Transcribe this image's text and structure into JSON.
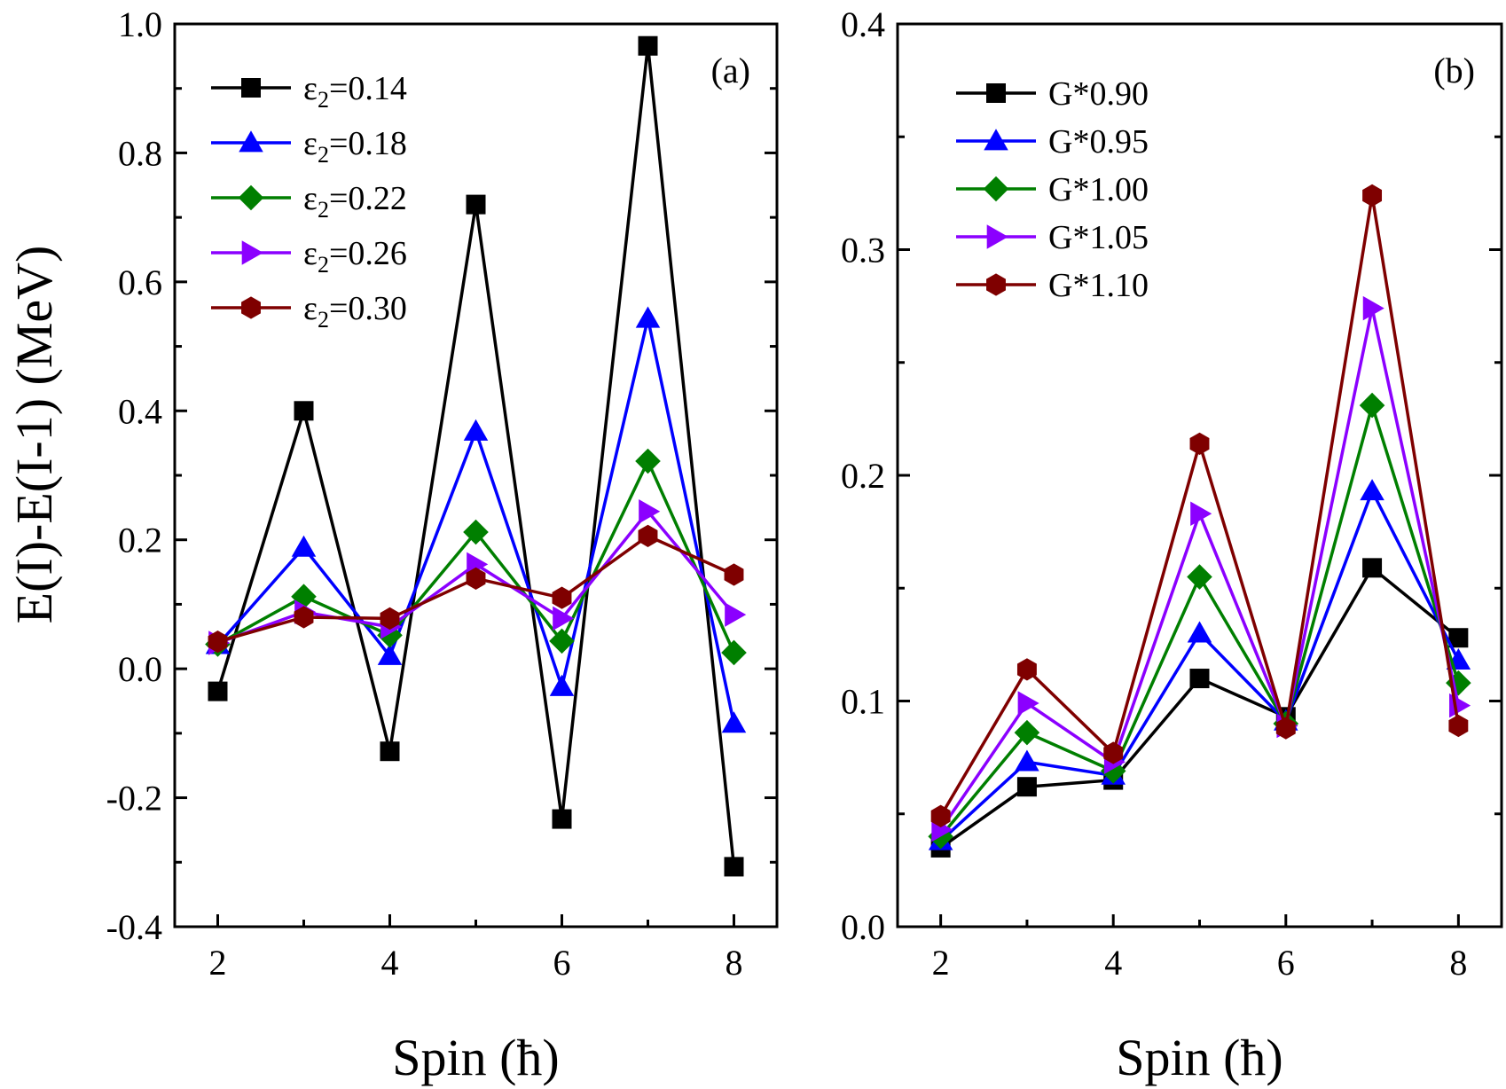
{
  "chart_data": [
    {
      "type": "line",
      "panel_label": "(a)",
      "xlabel": "Spin (ħ)",
      "ylabel": "E(I)-E(I-1) (MeV)",
      "xlim": [
        1.5,
        8.5
      ],
      "ylim": [
        -0.4,
        1.0
      ],
      "xticks": [
        "2",
        "4",
        "6",
        "8"
      ],
      "yticks": [
        "-0.4",
        "-0.2",
        "0.0",
        "0.2",
        "0.4",
        "0.6",
        "0.8",
        "1.0"
      ],
      "legend_position": "top-left",
      "x": [
        2,
        3,
        4,
        5,
        6,
        7,
        8
      ],
      "series": [
        {
          "name": "ε2=0.14",
          "name_base": "ε",
          "name_sub": "2",
          "name_rest": "=0.14",
          "color": "#000000",
          "marker": "square",
          "values": [
            -0.035,
            0.4,
            -0.128,
            0.72,
            -0.233,
            0.966,
            -0.307
          ]
        },
        {
          "name": "ε2=0.18",
          "name_base": "ε",
          "name_sub": "2",
          "name_rest": "=0.18",
          "color": "#0000ff",
          "marker": "triangle-up",
          "values": [
            0.037,
            0.188,
            0.02,
            0.368,
            -0.028,
            0.543,
            -0.085
          ]
        },
        {
          "name": "ε2=0.22",
          "name_base": "ε",
          "name_sub": "2",
          "name_rest": "=0.22",
          "color": "#007f00",
          "marker": "diamond",
          "values": [
            0.038,
            0.112,
            0.052,
            0.212,
            0.043,
            0.322,
            0.025
          ]
        },
        {
          "name": "ε2=0.26",
          "name_base": "ε",
          "name_sub": "2",
          "name_rest": "=0.26",
          "color": "#8b00ff",
          "marker": "triangle-right",
          "values": [
            0.04,
            0.088,
            0.065,
            0.162,
            0.078,
            0.244,
            0.084
          ]
        },
        {
          "name": "ε2=0.30",
          "name_base": "ε",
          "name_sub": "2",
          "name_rest": "=0.30",
          "color": "#7f0000",
          "marker": "hexagon",
          "values": [
            0.042,
            0.08,
            0.078,
            0.14,
            0.11,
            0.206,
            0.146
          ]
        }
      ]
    },
    {
      "type": "line",
      "panel_label": "(b)",
      "xlabel": "Spin (ħ)",
      "ylabel": "",
      "xlim": [
        1.5,
        8.5
      ],
      "ylim": [
        0.0,
        0.4
      ],
      "xticks": [
        "2",
        "4",
        "6",
        "8"
      ],
      "yticks": [
        "0.0",
        "0.1",
        "0.2",
        "0.3",
        "0.4"
      ],
      "legend_position": "top-left",
      "x": [
        2,
        3,
        4,
        5,
        6,
        7,
        8
      ],
      "series": [
        {
          "name": "G*0.90",
          "color": "#000000",
          "marker": "square",
          "values": [
            0.035,
            0.062,
            0.065,
            0.11,
            0.093,
            0.159,
            0.128
          ]
        },
        {
          "name": "G*0.95",
          "color": "#0000ff",
          "marker": "triangle-up",
          "values": [
            0.038,
            0.073,
            0.067,
            0.13,
            0.091,
            0.193,
            0.118
          ]
        },
        {
          "name": "G*1.00",
          "color": "#007f00",
          "marker": "diamond",
          "values": [
            0.04,
            0.086,
            0.069,
            0.155,
            0.09,
            0.231,
            0.108
          ]
        },
        {
          "name": "G*1.05",
          "color": "#8b00ff",
          "marker": "triangle-right",
          "values": [
            0.043,
            0.099,
            0.073,
            0.183,
            0.089,
            0.274,
            0.098
          ]
        },
        {
          "name": "G*1.10",
          "color": "#7f0000",
          "marker": "hexagon",
          "values": [
            0.049,
            0.114,
            0.077,
            0.214,
            0.088,
            0.324,
            0.089
          ]
        }
      ]
    }
  ]
}
